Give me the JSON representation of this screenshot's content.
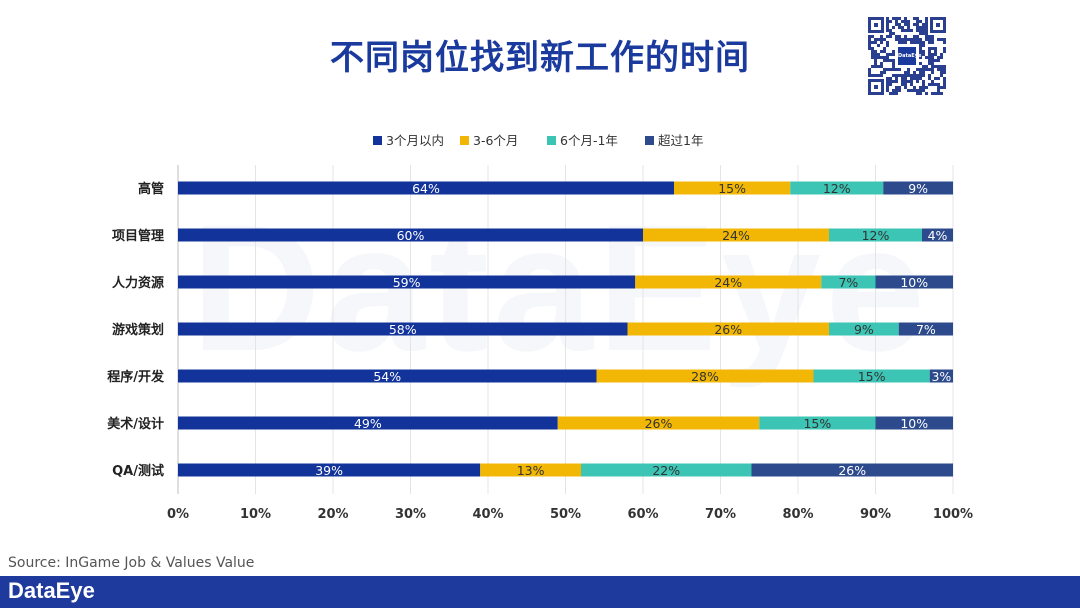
{
  "title": "不同岗位找到新工作的时间",
  "source": "Source: InGame Job & Values Value",
  "footer_logo": "DataEye",
  "watermark": "DataEye",
  "qr_logo": "DataEye",
  "colors": {
    "title": "#1a3a9e",
    "footer": "#1d3a9c"
  },
  "chart_data": {
    "type": "bar",
    "orientation": "horizontal",
    "stacked": true,
    "percent_stacked": true,
    "categories": [
      "高管",
      "项目管理",
      "人力资源",
      "游戏策划",
      "程序/开发",
      "美术/设计",
      "QA/测试"
    ],
    "series": [
      {
        "name": "3个月以内",
        "color": "#12339a",
        "values": [
          64,
          60,
          59,
          58,
          54,
          49,
          39
        ],
        "label_color": "#ffffff"
      },
      {
        "name": "3-6个月",
        "color": "#f2b705",
        "values": [
          15,
          24,
          24,
          26,
          28,
          26,
          13
        ],
        "label_color": "#333333"
      },
      {
        "name": "6个月-1年",
        "color": "#3cc4b4",
        "values": [
          12,
          12,
          7,
          9,
          15,
          15,
          22
        ],
        "label_color": "#333333"
      },
      {
        "name": "超过1年",
        "color": "#2c4a8c",
        "values": [
          9,
          4,
          10,
          7,
          3,
          10,
          26
        ],
        "label_color": "#ffffff"
      }
    ],
    "x_ticks": [
      "0%",
      "10%",
      "20%",
      "30%",
      "40%",
      "50%",
      "60%",
      "70%",
      "80%",
      "90%",
      "100%"
    ],
    "xlim": [
      0,
      100
    ],
    "legend_position": "top",
    "grid": true
  }
}
